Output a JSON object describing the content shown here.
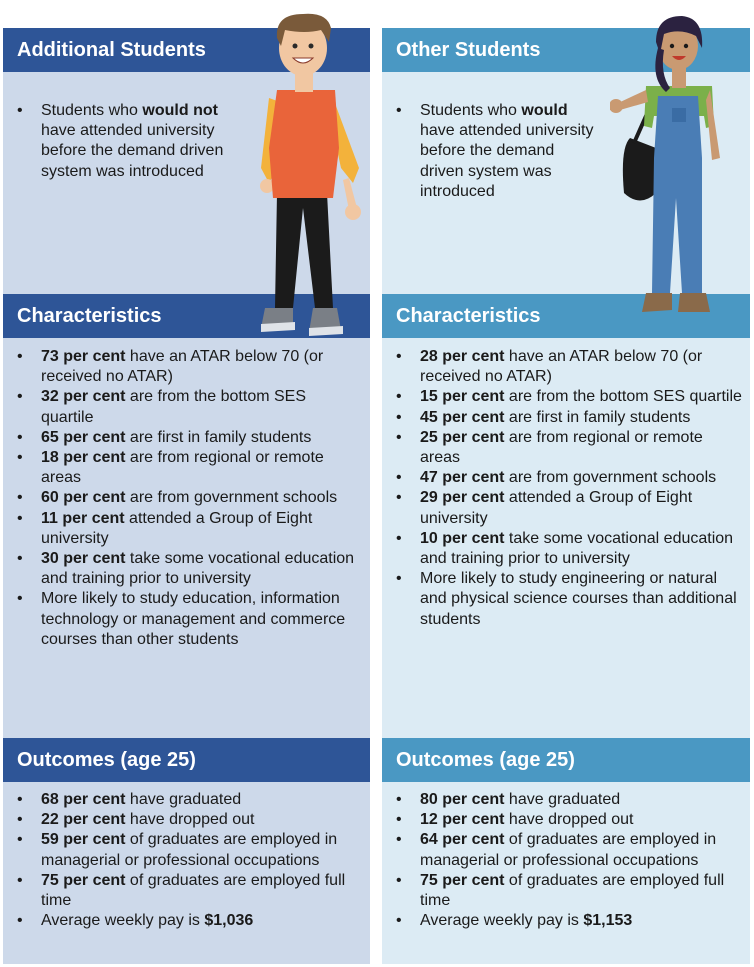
{
  "left": {
    "title": "Additional Students",
    "intro": [
      {
        "pre": "Students who ",
        "bold": "would not",
        "post": " have attended university before the demand driven system was introduced"
      }
    ],
    "characteristics_title": "Characteristics",
    "characteristics": [
      {
        "bold": "73 per cent",
        "rest": " have an ATAR below 70 (or received no ATAR)"
      },
      {
        "bold": "32 per cent",
        "rest": " are from the bottom SES quartile"
      },
      {
        "bold": "65 per cent",
        "rest": " are first in family students"
      },
      {
        "bold": "18 per cent",
        "rest": " are from regional or remote areas"
      },
      {
        "bold": "60 per cent",
        "rest": " are from government schools"
      },
      {
        "bold": "11 per cent",
        "rest": " attended a Group of Eight university"
      },
      {
        "bold": "30 per cent",
        "rest": " take some vocational education and training prior to university"
      },
      {
        "bold": "",
        "rest": "More likely to study education, information technology or management and commerce courses than other students"
      }
    ],
    "outcomes_title": "Outcomes (age 25)",
    "outcomes": [
      {
        "bold": "68 per cent",
        "rest": " have graduated",
        "tail": ""
      },
      {
        "bold": "22 per cent",
        "rest": " have dropped out",
        "tail": ""
      },
      {
        "bold": "59 per cent",
        "rest": " of graduates are employed in managerial or professional occupations",
        "tail": ""
      },
      {
        "bold": "75 per cent",
        "rest": " of graduates are employed full time",
        "tail": ""
      },
      {
        "bold": "",
        "rest": "Average weekly pay is ",
        "tail": "$1,036"
      }
    ]
  },
  "right": {
    "title": "Other Students",
    "intro": [
      {
        "pre": "Students who ",
        "bold": "would",
        "post": " have attended university before the demand driven system was introduced"
      }
    ],
    "characteristics_title": "Characteristics",
    "characteristics": [
      {
        "bold": "28 per cent",
        "rest": " have an ATAR below 70 (or received no ATAR)"
      },
      {
        "bold": "15 per cent",
        "rest": " are from the bottom SES quartile"
      },
      {
        "bold": "45 per cent",
        "rest": " are first in family students"
      },
      {
        "bold": "25 per cent",
        "rest": " are from regional or remote areas"
      },
      {
        "bold": "47 per cent",
        "rest": " are from government schools"
      },
      {
        "bold": "29 per cent",
        "rest": " attended a Group of Eight university"
      },
      {
        "bold": "10 per cent",
        "rest": " take some vocational education and training prior to university"
      },
      {
        "bold": "",
        "rest": "More likely to study engineering or natural and physical science courses than additional students"
      }
    ],
    "outcomes_title": "Outcomes (age 25)",
    "outcomes": [
      {
        "bold": "80 per cent",
        "rest": " have graduated",
        "tail": ""
      },
      {
        "bold": "12 per cent",
        "rest": " have dropped out",
        "tail": ""
      },
      {
        "bold": "64 per cent",
        "rest": " of graduates are employed in managerial or professional occupations",
        "tail": ""
      },
      {
        "bold": "75 per cent",
        "rest": " of graduates are employed full time",
        "tail": ""
      },
      {
        "bold": "",
        "rest": "Average weekly pay is ",
        "tail": "$1,153"
      }
    ]
  },
  "bullet": "•",
  "colors": {
    "left_header": "#2e5597",
    "right_header": "#4a98c3",
    "left_panel": "#cdd9ea",
    "right_panel": "#dcebf4"
  },
  "icons": {
    "left": "male-student-illustration",
    "right": "female-student-illustration"
  }
}
